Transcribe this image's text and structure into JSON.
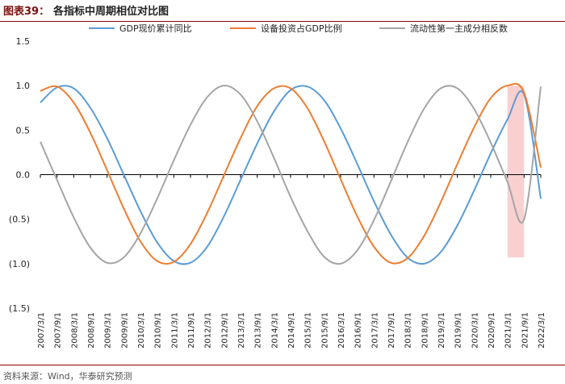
{
  "header": {
    "figure_label": "图表39：",
    "title": "各指标中周期相位对比图"
  },
  "source": "资料来源：Wind，华泰研究预测",
  "chart_data": {
    "type": "line",
    "ylim": [
      -1.5,
      1.5
    ],
    "y_ticks": [
      1.5,
      1.0,
      0.5,
      0.0,
      -0.5,
      -1.0,
      -1.5
    ],
    "y_tick_labels": [
      "1.5",
      "1.0",
      "0.5",
      "0.0",
      "(0.5)",
      "(1.0)",
      "(1.5)"
    ],
    "x_labels": [
      "2007/3/1",
      "2007/9/1",
      "2008/3/1",
      "2008/9/1",
      "2009/3/1",
      "2009/9/1",
      "2010/3/1",
      "2010/9/1",
      "2011/3/1",
      "2011/9/1",
      "2012/3/1",
      "2012/9/1",
      "2013/3/1",
      "2013/9/1",
      "2014/3/1",
      "2014/9/1",
      "2015/3/1",
      "2015/9/1",
      "2016/3/1",
      "2016/9/1",
      "2017/3/1",
      "2017/9/1",
      "2018/3/1",
      "2018/9/1",
      "2019/3/1",
      "2019/9/1",
      "2020/3/1",
      "2020/9/1",
      "2021/3/1",
      "2021/9/1",
      "2022/3/1"
    ],
    "legend_position": "top",
    "highlight": {
      "start": "2021/3/1",
      "end": "2021/9/1",
      "color": "#f8c8c8"
    },
    "series": [
      {
        "name": "GDP现价累计同比",
        "color": "#5b9bd5",
        "values": [
          0.81,
          0.98,
          0.97,
          0.75,
          0.41,
          0.0,
          -0.41,
          -0.76,
          -0.97,
          -0.99,
          -0.81,
          -0.47,
          -0.06,
          0.35,
          0.71,
          0.95,
          0.99,
          0.84,
          0.52,
          0.12,
          -0.3,
          -0.67,
          -0.93,
          -1.0,
          -0.87,
          -0.57,
          -0.18,
          0.24,
          0.62,
          0.9,
          -0.27
        ]
      },
      {
        "name": "设备投资占GDP比例",
        "color": "#ed7d31",
        "values": [
          0.94,
          0.99,
          0.81,
          0.47,
          0.05,
          -0.38,
          -0.75,
          -0.97,
          -0.98,
          -0.78,
          -0.43,
          -0.01,
          0.41,
          0.77,
          0.97,
          0.97,
          0.75,
          0.38,
          -0.05,
          -0.47,
          -0.81,
          -0.99,
          -0.94,
          -0.69,
          -0.31,
          0.12,
          0.53,
          0.86,
          1.0,
          0.92,
          0.08
        ]
      },
      {
        "name": "流动性第一主成分相反数",
        "color": "#a5a5a5",
        "values": [
          0.37,
          -0.06,
          -0.48,
          -0.82,
          -0.99,
          -0.93,
          -0.66,
          -0.27,
          0.16,
          0.56,
          0.87,
          1.0,
          0.9,
          0.6,
          0.19,
          -0.25,
          -0.63,
          -0.92,
          -1.0,
          -0.85,
          -0.51,
          -0.08,
          0.36,
          0.74,
          0.97,
          0.97,
          0.74,
          0.36,
          -0.08,
          -0.5,
          0.99
        ]
      }
    ]
  }
}
